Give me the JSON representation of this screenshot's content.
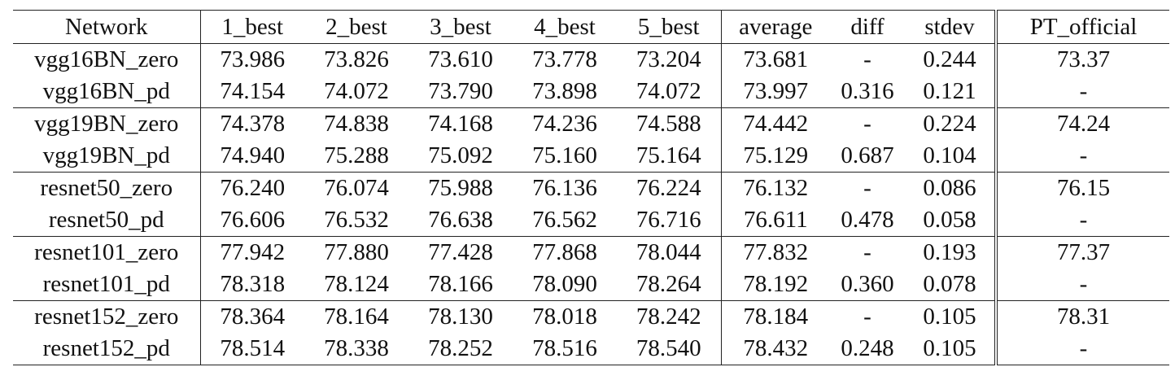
{
  "table": {
    "headers": [
      "Network",
      "1_best",
      "2_best",
      "3_best",
      "4_best",
      "5_best",
      "average",
      "diff",
      "stdev",
      "PT_official"
    ],
    "rows": [
      {
        "network": "vgg16BN_zero",
        "v1": "73.986",
        "v2": "73.826",
        "v3": "73.610",
        "v4": "73.778",
        "v5": "73.204",
        "average": "73.681",
        "diff": "-",
        "stdev": "0.244",
        "pt": "73.37"
      },
      {
        "network": "vgg16BN_pd",
        "v1": "74.154",
        "v2": "74.072",
        "v3": "73.790",
        "v4": "73.898",
        "v5": "74.072",
        "average": "73.997",
        "diff": "0.316",
        "stdev": "0.121",
        "pt": "-"
      },
      {
        "network": "vgg19BN_zero",
        "v1": "74.378",
        "v2": "74.838",
        "v3": "74.168",
        "v4": "74.236",
        "v5": "74.588",
        "average": "74.442",
        "diff": "-",
        "stdev": "0.224",
        "pt": "74.24"
      },
      {
        "network": "vgg19BN_pd",
        "v1": "74.940",
        "v2": "75.288",
        "v3": "75.092",
        "v4": "75.160",
        "v5": "75.164",
        "average": "75.129",
        "diff": "0.687",
        "stdev": "0.104",
        "pt": "-"
      },
      {
        "network": "resnet50_zero",
        "v1": "76.240",
        "v2": "76.074",
        "v3": "75.988",
        "v4": "76.136",
        "v5": "76.224",
        "average": "76.132",
        "diff": "-",
        "stdev": "0.086",
        "pt": "76.15"
      },
      {
        "network": "resnet50_pd",
        "v1": "76.606",
        "v2": "76.532",
        "v3": "76.638",
        "v4": "76.562",
        "v5": "76.716",
        "average": "76.611",
        "diff": "0.478",
        "stdev": "0.058",
        "pt": "-"
      },
      {
        "network": "resnet101_zero",
        "v1": "77.942",
        "v2": "77.880",
        "v3": "77.428",
        "v4": "77.868",
        "v5": "78.044",
        "average": "77.832",
        "diff": "-",
        "stdev": "0.193",
        "pt": "77.37"
      },
      {
        "network": "resnet101_pd",
        "v1": "78.318",
        "v2": "78.124",
        "v3": "78.166",
        "v4": "78.090",
        "v5": "78.264",
        "average": "78.192",
        "diff": "0.360",
        "stdev": "0.078",
        "pt": "-"
      },
      {
        "network": "resnet152_zero",
        "v1": "78.364",
        "v2": "78.164",
        "v3": "78.130",
        "v4": "78.018",
        "v5": "78.242",
        "average": "78.184",
        "diff": "-",
        "stdev": "0.105",
        "pt": "78.31"
      },
      {
        "network": "resnet152_pd",
        "v1": "78.514",
        "v2": "78.338",
        "v3": "78.252",
        "v4": "78.516",
        "v5": "78.540",
        "average": "78.432",
        "diff": "0.248",
        "stdev": "0.105",
        "pt": "-"
      }
    ]
  }
}
